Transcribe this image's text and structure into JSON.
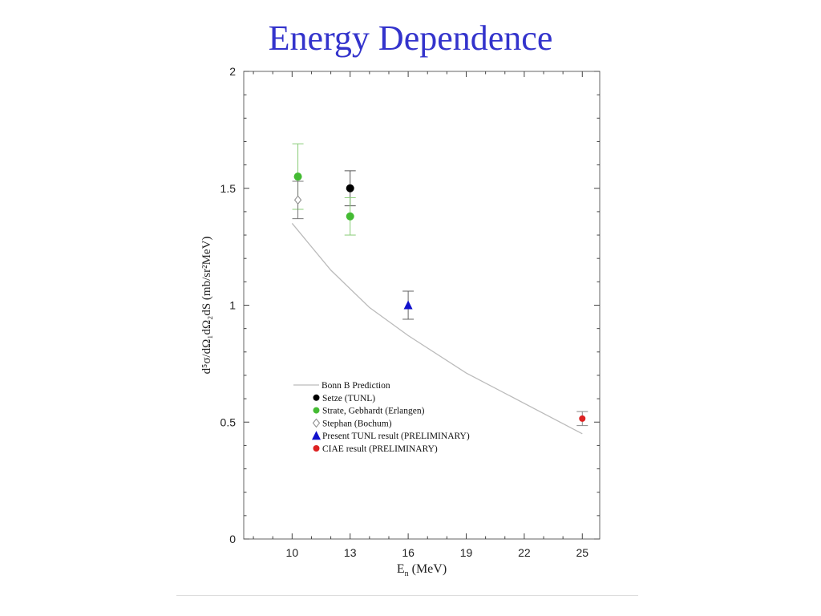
{
  "title": "Energy Dependence",
  "chart_data": {
    "type": "scatter",
    "xlabel": "E",
    "xlabel_sub": "n",
    "xlabel_unit": " (MeV)",
    "ylabel": "d⁵σ/dΩ₁dΩ₂dS (mb/sr²MeV)",
    "xlim": [
      7.5,
      25.9
    ],
    "ylim": [
      0,
      2
    ],
    "x_ticks": [
      10,
      13,
      16,
      19,
      22,
      25
    ],
    "y_ticks": [
      0,
      0.5,
      1,
      1.5,
      2
    ],
    "y_tick_labels": [
      "0",
      "0.5",
      "1",
      "1.5",
      "2"
    ],
    "legend_position": "lower-left",
    "series": [
      {
        "name": "Bonn B Prediction",
        "kind": "line",
        "color": "#bbbbbb",
        "x": [
          10,
          12,
          14,
          16,
          19,
          25
        ],
        "y": [
          1.35,
          1.15,
          0.99,
          0.87,
          0.71,
          0.45
        ]
      },
      {
        "name": "Setze (TUNL)",
        "kind": "circle",
        "color": "#000000",
        "errcolor": "#555555",
        "x": [
          13.0
        ],
        "y": [
          1.5
        ],
        "err": [
          0.075
        ]
      },
      {
        "name": "Strate, Gebhardt (Erlangen)",
        "kind": "circle",
        "color": "#44bb33",
        "errcolor": "#88cc77",
        "x": [
          10.3,
          13.0
        ],
        "y": [
          1.55,
          1.38
        ],
        "err": [
          0.14,
          0.08
        ]
      },
      {
        "name": "Stephan (Bochum)",
        "kind": "diamond",
        "color": "#888888",
        "errcolor": "#777777",
        "x": [
          10.3
        ],
        "y": [
          1.45
        ],
        "err": [
          0.08
        ]
      },
      {
        "name": "Present TUNL result (PRELIMINARY)",
        "kind": "triangle",
        "color": "#1111cc",
        "errcolor": "#666666",
        "x": [
          16.0
        ],
        "y": [
          1.0
        ],
        "err": [
          0.06
        ]
      },
      {
        "name": "CIAE result (PRELIMINARY)",
        "kind": "circle-small",
        "color": "#dd2222",
        "errcolor": "#888888",
        "x": [
          25.0
        ],
        "y": [
          0.515
        ],
        "err": [
          0.03
        ]
      }
    ]
  }
}
